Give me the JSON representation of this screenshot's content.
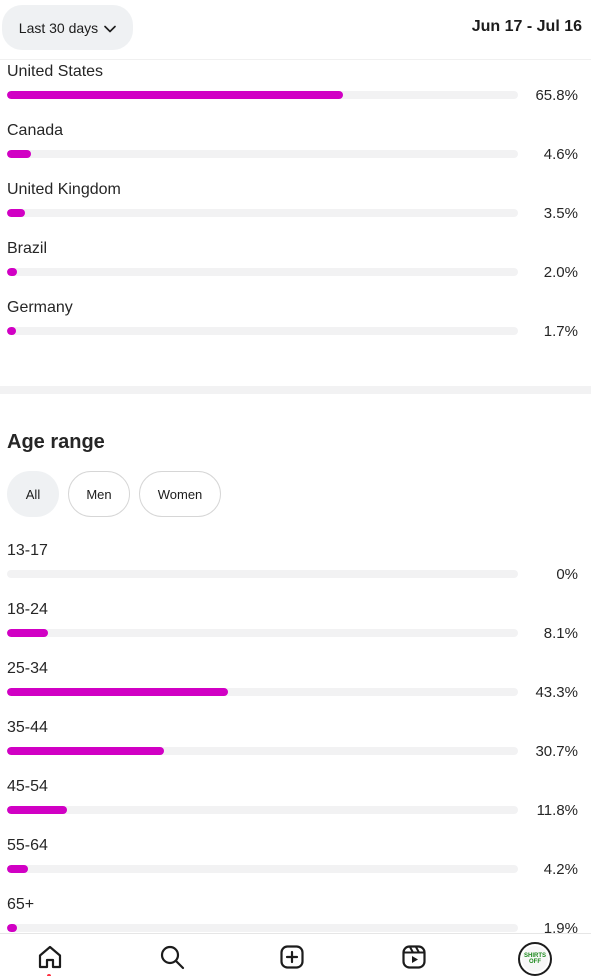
{
  "header": {
    "range_label": "Last 30 days",
    "date_range": "Jun 17 - Jul 16"
  },
  "countries": [
    {
      "label": "United States",
      "value": 65.8,
      "pct": "65.8%"
    },
    {
      "label": "Canada",
      "value": 4.6,
      "pct": "4.6%"
    },
    {
      "label": "United Kingdom",
      "value": 3.5,
      "pct": "3.5%"
    },
    {
      "label": "Brazil",
      "value": 2.0,
      "pct": "2.0%"
    },
    {
      "label": "Germany",
      "value": 1.7,
      "pct": "1.7%"
    }
  ],
  "age_section": {
    "title": "Age range",
    "filters": [
      {
        "label": "All",
        "selected": true
      },
      {
        "label": "Men",
        "selected": false
      },
      {
        "label": "Women",
        "selected": false
      }
    ],
    "rows": [
      {
        "label": "13-17",
        "value": 0,
        "pct": "0%"
      },
      {
        "label": "18-24",
        "value": 8.1,
        "pct": "8.1%"
      },
      {
        "label": "25-34",
        "value": 43.3,
        "pct": "43.3%"
      },
      {
        "label": "35-44",
        "value": 30.7,
        "pct": "30.7%"
      },
      {
        "label": "45-54",
        "value": 11.8,
        "pct": "11.8%"
      },
      {
        "label": "55-64",
        "value": 4.2,
        "pct": "4.2%"
      },
      {
        "label": "65+",
        "value": 1.9,
        "pct": "1.9%"
      }
    ]
  },
  "bottom_nav": {
    "items": [
      "home-icon",
      "search-icon",
      "create-icon",
      "reels-icon",
      "profile-avatar"
    ],
    "active": "home-icon",
    "avatar_text": "SHIRTS OFF"
  },
  "colors": {
    "bar_fill": "#d100c4",
    "bar_track": "#f2f2f3",
    "chip_active": "#eff1f3",
    "notification_dot": "#ff3040"
  }
}
